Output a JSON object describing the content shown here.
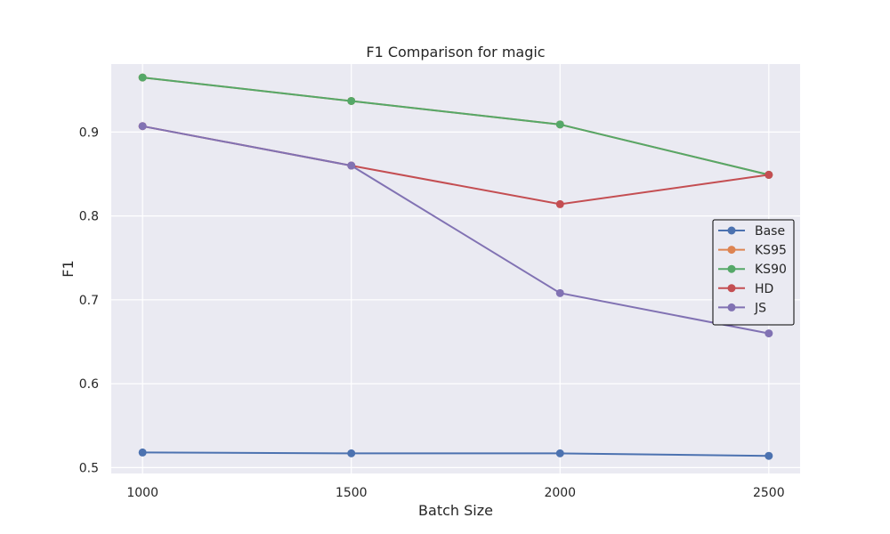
{
  "chart_data": {
    "type": "line",
    "title": "F1 Comparison for magic",
    "xlabel": "Batch Size",
    "ylabel": "F1",
    "x": [
      1000,
      1500,
      2000,
      2500
    ],
    "x_ticks": [
      "1000",
      "1500",
      "2000",
      "2500"
    ],
    "y_ticks": [
      "0.5",
      "0.6",
      "0.7",
      "0.8",
      "0.9"
    ],
    "xlim": [
      925,
      2575
    ],
    "ylim": [
      0.493,
      0.981
    ],
    "grid": true,
    "legend_position": "center-right",
    "series": [
      {
        "name": "Base",
        "color": "#4c72b0",
        "values": [
          0.518,
          0.517,
          0.517,
          0.514
        ]
      },
      {
        "name": "KS95",
        "color": "#dd8452",
        "values": [
          0.965,
          0.937,
          0.909,
          0.849
        ]
      },
      {
        "name": "KS90",
        "color": "#55a868",
        "values": [
          0.965,
          0.937,
          0.909,
          0.849
        ]
      },
      {
        "name": "HD",
        "color": "#c44e52",
        "values": [
          0.907,
          0.86,
          0.814,
          0.849
        ]
      },
      {
        "name": "JS",
        "color": "#8172b3",
        "values": [
          0.907,
          0.86,
          0.708,
          0.66
        ]
      }
    ]
  }
}
